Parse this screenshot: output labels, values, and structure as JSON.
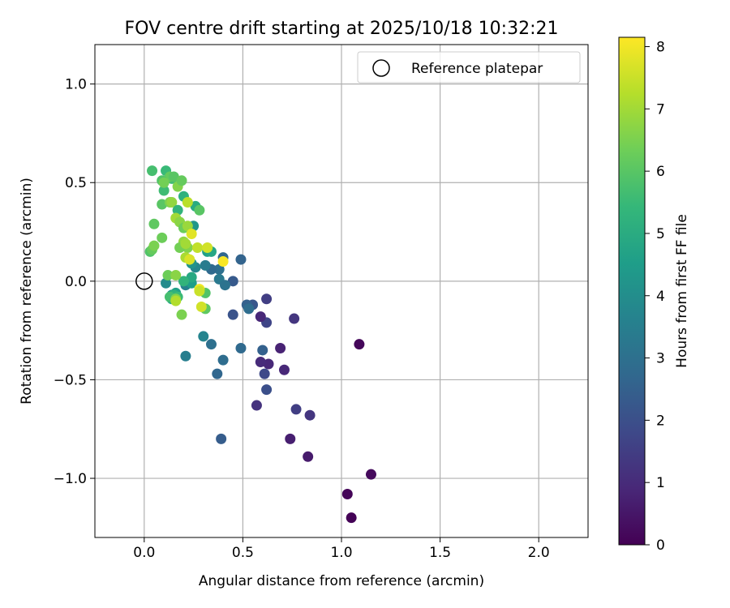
{
  "chart_data": {
    "type": "scatter",
    "title": "FOV centre drift starting at 2025/10/18 10:32:21",
    "xlabel": "Angular distance from reference (arcmin)",
    "ylabel": "Rotation from reference (arcmin)",
    "xlim": [
      -0.25,
      2.25
    ],
    "ylim": [
      -1.3,
      1.2
    ],
    "xticks": [
      0.0,
      0.5,
      1.0,
      1.5,
      2.0
    ],
    "xtick_labels": [
      "0.0",
      "0.5",
      "1.0",
      "1.5",
      "2.0"
    ],
    "yticks": [
      -1.0,
      -0.5,
      0.0,
      0.5,
      1.0
    ],
    "ytick_labels": [
      "−1.0",
      "−0.5",
      "0.0",
      "0.5",
      "1.0"
    ],
    "grid": true,
    "legend": {
      "position": "top-right",
      "label": "Reference platepar"
    },
    "reference_point": {
      "x": 0.0,
      "y": 0.0
    },
    "colorbar": {
      "label": "Hours from first FF file",
      "range": [
        0,
        8.15
      ],
      "ticks": [
        0,
        1,
        2,
        3,
        4,
        5,
        6,
        7,
        8
      ],
      "tick_labels": [
        "0",
        "1",
        "2",
        "3",
        "4",
        "5",
        "6",
        "7",
        "8"
      ],
      "colormap_stops": [
        "#440154",
        "#482878",
        "#3e4989",
        "#31688e",
        "#26828e",
        "#1f9e89",
        "#35b779",
        "#6ece58",
        "#b5de2b",
        "#fde725"
      ]
    },
    "points": [
      {
        "x": 1.05,
        "y": -1.2,
        "h": 0.05
      },
      {
        "x": 1.03,
        "y": -1.08,
        "h": 0.1
      },
      {
        "x": 1.15,
        "y": -0.98,
        "h": 0.2
      },
      {
        "x": 1.09,
        "y": -0.32,
        "h": 0.15
      },
      {
        "x": 0.83,
        "y": -0.89,
        "h": 0.6
      },
      {
        "x": 0.74,
        "y": -0.8,
        "h": 0.7
      },
      {
        "x": 0.84,
        "y": -0.68,
        "h": 1.3
      },
      {
        "x": 0.77,
        "y": -0.65,
        "h": 1.5
      },
      {
        "x": 0.57,
        "y": -0.63,
        "h": 1.2
      },
      {
        "x": 0.71,
        "y": -0.45,
        "h": 0.9
      },
      {
        "x": 0.69,
        "y": -0.34,
        "h": 0.8
      },
      {
        "x": 0.63,
        "y": -0.42,
        "h": 0.9
      },
      {
        "x": 0.59,
        "y": -0.41,
        "h": 1.0
      },
      {
        "x": 0.61,
        "y": -0.47,
        "h": 1.8
      },
      {
        "x": 0.62,
        "y": -0.55,
        "h": 2.0
      },
      {
        "x": 0.6,
        "y": -0.35,
        "h": 2.5
      },
      {
        "x": 0.62,
        "y": -0.21,
        "h": 1.7
      },
      {
        "x": 0.59,
        "y": -0.18,
        "h": 0.9
      },
      {
        "x": 0.62,
        "y": -0.09,
        "h": 1.5
      },
      {
        "x": 0.76,
        "y": -0.19,
        "h": 1.3
      },
      {
        "x": 0.55,
        "y": -0.12,
        "h": 2.2
      },
      {
        "x": 0.52,
        "y": -0.12,
        "h": 2.5
      },
      {
        "x": 0.53,
        "y": -0.14,
        "h": 2.9
      },
      {
        "x": 0.45,
        "y": -0.17,
        "h": 2.1
      },
      {
        "x": 0.49,
        "y": -0.34,
        "h": 2.8
      },
      {
        "x": 0.4,
        "y": -0.4,
        "h": 2.9
      },
      {
        "x": 0.37,
        "y": -0.47,
        "h": 2.7
      },
      {
        "x": 0.34,
        "y": -0.32,
        "h": 3.0
      },
      {
        "x": 0.3,
        "y": -0.28,
        "h": 3.7
      },
      {
        "x": 0.21,
        "y": -0.38,
        "h": 3.5
      },
      {
        "x": 0.39,
        "y": -0.8,
        "h": 2.4
      },
      {
        "x": 0.45,
        "y": 0.0,
        "h": 2.3
      },
      {
        "x": 0.49,
        "y": 0.11,
        "h": 2.6
      },
      {
        "x": 0.4,
        "y": 0.12,
        "h": 2.7
      },
      {
        "x": 0.38,
        "y": 0.06,
        "h": 3.0
      },
      {
        "x": 0.34,
        "y": 0.06,
        "h": 2.8
      },
      {
        "x": 0.38,
        "y": 0.01,
        "h": 3.3
      },
      {
        "x": 0.41,
        "y": -0.02,
        "h": 3.1
      },
      {
        "x": 0.31,
        "y": 0.08,
        "h": 3.4
      },
      {
        "x": 0.26,
        "y": 0.07,
        "h": 3.8
      },
      {
        "x": 0.24,
        "y": 0.09,
        "h": 4.2
      },
      {
        "x": 0.32,
        "y": 0.15,
        "h": 4.6
      },
      {
        "x": 0.34,
        "y": 0.15,
        "h": 4.8
      },
      {
        "x": 0.25,
        "y": 0.28,
        "h": 4.3
      },
      {
        "x": 0.26,
        "y": 0.38,
        "h": 5.0
      },
      {
        "x": 0.2,
        "y": 0.43,
        "h": 5.2
      },
      {
        "x": 0.21,
        "y": -0.02,
        "h": 3.6
      },
      {
        "x": 0.24,
        "y": -0.01,
        "h": 4.5
      },
      {
        "x": 0.24,
        "y": 0.02,
        "h": 4.9
      },
      {
        "x": 0.2,
        "y": 0.0,
        "h": 5.3
      },
      {
        "x": 0.11,
        "y": -0.01,
        "h": 3.9
      },
      {
        "x": 0.14,
        "y": -0.07,
        "h": 4.3
      },
      {
        "x": 0.16,
        "y": -0.06,
        "h": 4.6
      },
      {
        "x": 0.14,
        "y": -0.09,
        "h": 4.9
      },
      {
        "x": 0.15,
        "y": -0.07,
        "h": 5.2
      },
      {
        "x": 0.17,
        "y": -0.08,
        "h": 5.5
      },
      {
        "x": 0.13,
        "y": -0.08,
        "h": 5.7
      },
      {
        "x": 0.16,
        "y": -0.09,
        "h": 6.6
      },
      {
        "x": 0.31,
        "y": -0.06,
        "h": 5.9
      },
      {
        "x": 0.31,
        "y": -0.14,
        "h": 6.1
      },
      {
        "x": 0.29,
        "y": -0.13,
        "h": 7.6
      },
      {
        "x": 0.28,
        "y": -0.04,
        "h": 8.0
      },
      {
        "x": 0.28,
        "y": -0.05,
        "h": 7.5
      },
      {
        "x": 0.19,
        "y": -0.17,
        "h": 6.5
      },
      {
        "x": 0.16,
        "y": -0.1,
        "h": 7.2
      },
      {
        "x": 0.12,
        "y": 0.03,
        "h": 6.3
      },
      {
        "x": 0.16,
        "y": 0.03,
        "h": 6.7
      },
      {
        "x": 0.03,
        "y": 0.15,
        "h": 5.9
      },
      {
        "x": 0.04,
        "y": 0.16,
        "h": 6.2
      },
      {
        "x": 0.05,
        "y": 0.18,
        "h": 6.5
      },
      {
        "x": 0.09,
        "y": 0.22,
        "h": 6.3
      },
      {
        "x": 0.05,
        "y": 0.29,
        "h": 6.1
      },
      {
        "x": 0.04,
        "y": 0.56,
        "h": 5.7
      },
      {
        "x": 0.11,
        "y": 0.56,
        "h": 5.5
      },
      {
        "x": 0.14,
        "y": 0.52,
        "h": 5.6
      },
      {
        "x": 0.13,
        "y": 0.53,
        "h": 6.2
      },
      {
        "x": 0.15,
        "y": 0.53,
        "h": 6.0
      },
      {
        "x": 0.09,
        "y": 0.51,
        "h": 5.9
      },
      {
        "x": 0.1,
        "y": 0.46,
        "h": 5.6
      },
      {
        "x": 0.1,
        "y": 0.5,
        "h": 6.4
      },
      {
        "x": 0.17,
        "y": 0.48,
        "h": 6.6
      },
      {
        "x": 0.19,
        "y": 0.51,
        "h": 6.2
      },
      {
        "x": 0.09,
        "y": 0.39,
        "h": 6.0
      },
      {
        "x": 0.13,
        "y": 0.4,
        "h": 6.5
      },
      {
        "x": 0.14,
        "y": 0.4,
        "h": 6.8
      },
      {
        "x": 0.17,
        "y": 0.36,
        "h": 5.3
      },
      {
        "x": 0.22,
        "y": 0.4,
        "h": 7.3
      },
      {
        "x": 0.28,
        "y": 0.36,
        "h": 6.0
      },
      {
        "x": 0.16,
        "y": 0.32,
        "h": 7.0
      },
      {
        "x": 0.18,
        "y": 0.3,
        "h": 6.7
      },
      {
        "x": 0.2,
        "y": 0.27,
        "h": 6.3
      },
      {
        "x": 0.22,
        "y": 0.28,
        "h": 6.9
      },
      {
        "x": 0.24,
        "y": 0.24,
        "h": 7.8
      },
      {
        "x": 0.2,
        "y": 0.2,
        "h": 6.8
      },
      {
        "x": 0.22,
        "y": 0.17,
        "h": 6.6
      },
      {
        "x": 0.18,
        "y": 0.17,
        "h": 6.4
      },
      {
        "x": 0.21,
        "y": 0.19,
        "h": 7.0
      },
      {
        "x": 0.27,
        "y": 0.17,
        "h": 7.4
      },
      {
        "x": 0.32,
        "y": 0.17,
        "h": 7.6
      },
      {
        "x": 0.21,
        "y": 0.12,
        "h": 7.1
      },
      {
        "x": 0.23,
        "y": 0.11,
        "h": 7.7
      },
      {
        "x": 0.4,
        "y": 0.1,
        "h": 8.1
      }
    ]
  }
}
